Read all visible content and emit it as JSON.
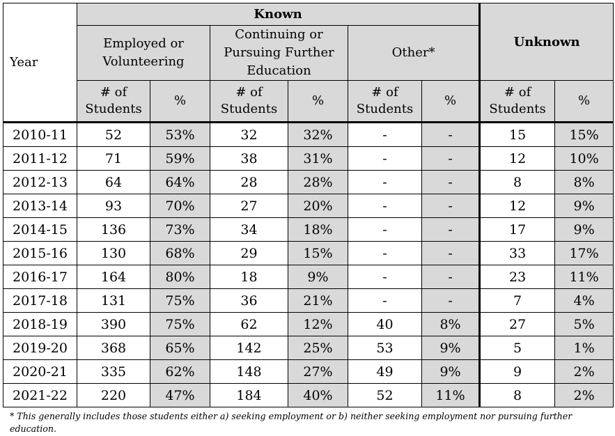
{
  "headers": {
    "year": "Year",
    "known": "Known",
    "unknown": "Unknown",
    "employed": "Employed or Volunteering",
    "continuing": "Continuing or Pursuing Further Education",
    "other": "Other*",
    "num_students": "# of Students",
    "percent": "%"
  },
  "rows": [
    [
      "2010-11",
      "52",
      "53%",
      "32",
      "32%",
      "-",
      "-",
      "15",
      "15%"
    ],
    [
      "2011-12",
      "71",
      "59%",
      "38",
      "31%",
      "-",
      "-",
      "12",
      "10%"
    ],
    [
      "2012-13",
      "64",
      "64%",
      "28",
      "28%",
      "-",
      "-",
      "8",
      "8%"
    ],
    [
      "2013-14",
      "93",
      "70%",
      "27",
      "20%",
      "-",
      "-",
      "12",
      "9%"
    ],
    [
      "2014-15",
      "136",
      "73%",
      "34",
      "18%",
      "-",
      "-",
      "17",
      "9%"
    ],
    [
      "2015-16",
      "130",
      "68%",
      "29",
      "15%",
      "-",
      "-",
      "33",
      "17%"
    ],
    [
      "2016-17",
      "164",
      "80%",
      "18",
      "9%",
      "-",
      "-",
      "23",
      "11%"
    ],
    [
      "2017-18",
      "131",
      "75%",
      "36",
      "21%",
      "-",
      "-",
      "7",
      "4%"
    ],
    [
      "2018-19",
      "390",
      "75%",
      "62",
      "12%",
      "40",
      "8%",
      "27",
      "5%"
    ],
    [
      "2019-20",
      "368",
      "65%",
      "142",
      "25%",
      "53",
      "9%",
      "5",
      "1%"
    ],
    [
      "2020-21",
      "335",
      "62%",
      "148",
      "27%",
      "49",
      "9%",
      "9",
      "2%"
    ],
    [
      "2021-22",
      "220",
      "47%",
      "184",
      "40%",
      "52",
      "11%",
      "8",
      "2%"
    ]
  ],
  "footnote": "* This generally includes those students either a) seeking employment or b) neither seeking employment nor pursuing further education."
}
